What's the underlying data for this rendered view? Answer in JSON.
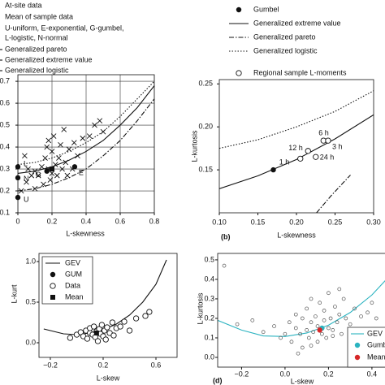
{
  "chart_data": [
    {
      "type": "scatter",
      "xlabel": "L-skewness",
      "grid": true,
      "xlim": [
        0,
        0.8
      ],
      "xticks": [
        0,
        0.2,
        0.4,
        0.6,
        0.8
      ],
      "ylim": [
        0.1,
        0.73
      ],
      "yticks": [
        0.1,
        0.2,
        0.3,
        0.4,
        0.5,
        0.6,
        0.7
      ],
      "series": [
        {
          "name": "At-site data",
          "marker": "x",
          "color": "#111",
          "x": [
            0.05,
            0.06,
            0.08,
            0.1,
            0.12,
            0.14,
            0.15,
            0.16,
            0.17,
            0.18,
            0.18,
            0.2,
            0.2,
            0.21,
            0.22,
            0.23,
            0.24,
            0.25,
            0.26,
            0.27,
            0.28,
            0.3,
            0.32,
            0.33,
            0.35,
            0.38,
            0.42,
            0.45,
            0.48,
            0.5,
            0.02,
            0.1,
            0.04,
            0.19,
            0.29
          ],
          "values": [
            0.24,
            0.3,
            0.27,
            0.29,
            0.27,
            0.31,
            0.23,
            0.35,
            0.4,
            0.3,
            0.43,
            0.28,
            0.38,
            0.45,
            0.32,
            0.27,
            0.35,
            0.41,
            0.3,
            0.48,
            0.33,
            0.39,
            0.3,
            0.42,
            0.36,
            0.44,
            0.45,
            0.5,
            0.52,
            0.47,
            0.2,
            0.21,
            0.36,
            0.25,
            0.27
          ]
        },
        {
          "name": "Mean of sample data",
          "marker": "square",
          "color": "#111",
          "x": [
            0.2
          ],
          "values": [
            0.3
          ]
        },
        {
          "name": [
            "U-uniform, E-exponential, G-gumbel,",
            "L-logistic, N-normal"
          ],
          "marker": "dot",
          "color": "#111",
          "x": [
            0,
            0,
            0,
            0.17,
            0.333
          ],
          "values": [
            0.17,
            0.26,
            0.31,
            0.29,
            0.31
          ],
          "point_labels": [
            "U",
            "N",
            "L",
            "G",
            "E"
          ]
        },
        {
          "name": "Generalized pareto",
          "line": "dashdot",
          "color": "#111",
          "x": [
            0,
            0.1,
            0.2,
            0.3,
            0.4,
            0.5,
            0.6,
            0.7,
            0.8
          ],
          "values": [
            0.2,
            0.21,
            0.23,
            0.26,
            0.3,
            0.36,
            0.43,
            0.52,
            0.62
          ]
        },
        {
          "name": "Generalized extreme value",
          "line": "solid",
          "color": "#111",
          "x": [
            0,
            0.1,
            0.2,
            0.3,
            0.4,
            0.5,
            0.6,
            0.7,
            0.8
          ],
          "values": [
            0.28,
            0.29,
            0.31,
            0.34,
            0.38,
            0.43,
            0.5,
            0.58,
            0.68
          ]
        },
        {
          "name": "Generalized logistic",
          "line": "dotted",
          "color": "#111",
          "x": [
            0,
            0.1,
            0.2,
            0.3,
            0.4,
            0.5,
            0.6,
            0.7,
            0.8
          ],
          "values": [
            0.32,
            0.33,
            0.35,
            0.38,
            0.42,
            0.47,
            0.54,
            0.62,
            0.7
          ]
        }
      ]
    },
    {
      "type": "scatter",
      "xlabel": "L-skewness",
      "ylabel": "L-kurtosis",
      "panel_label": "(b)",
      "grid": false,
      "xlim": [
        0.1,
        0.3
      ],
      "xticks": [
        {
          "value": 0.1,
          "label": "0.10"
        },
        0.15,
        {
          "value": 0.2,
          "label": "0.20"
        },
        0.25,
        {
          "value": 0.3,
          "label": "0.30"
        }
      ],
      "ylim": [
        0.1,
        0.255
      ],
      "yticks": [
        0.15,
        {
          "value": 0.2,
          "label": "0.20"
        },
        0.25
      ],
      "series": [
        {
          "name": "Gumbel",
          "marker": "dot",
          "color": "#111",
          "x": [
            0.17
          ],
          "values": [
            0.15
          ]
        },
        {
          "name": "Generalized extreme value",
          "line": "solid",
          "color": "#111",
          "x": [
            0.1,
            0.15,
            0.2,
            0.25,
            0.3
          ],
          "values": [
            0.128,
            0.143,
            0.162,
            0.186,
            0.214
          ]
        },
        {
          "name": "Generalized pareto",
          "line": "dashdot",
          "color": "#111",
          "x": [
            0.226,
            0.245,
            0.27
          ],
          "values": [
            0.1,
            0.12,
            0.144
          ]
        },
        {
          "name": "Generalized logistic",
          "line": "dotted",
          "color": "#111",
          "x": [
            0.1,
            0.15,
            0.2,
            0.25,
            0.3
          ],
          "values": [
            0.175,
            0.185,
            0.2,
            0.218,
            0.242
          ]
        },
        {
          "name": "Regional sample L-moments",
          "marker": "circle",
          "color": "#111",
          "x": [
            0.205,
            0.215,
            0.225,
            0.235,
            0.241
          ],
          "values": [
            0.163,
            0.172,
            0.165,
            0.184,
            0.184
          ],
          "point_labels": [
            "1 h",
            "12 h",
            "24 h",
            "6 h",
            "3 h"
          ]
        }
      ]
    },
    {
      "type": "scatter",
      "xlabel": "L-skew",
      "ylabel": "L-kurt",
      "grid": false,
      "xlim": [
        -0.286,
        0.76
      ],
      "xticks": [
        {
          "value": -0.2,
          "label": "−0.2"
        },
        0.2,
        0.6
      ],
      "ylim": [
        -0.18,
        1.1
      ],
      "yticks": [
        {
          "value": 0,
          "label": "0.0"
        },
        0.5,
        {
          "value": 1,
          "label": "1.0"
        }
      ],
      "series": [
        {
          "name": "GEV",
          "line": "solid",
          "color": "#111",
          "x": [
            -0.25,
            -0.1,
            0,
            0.1,
            0.2,
            0.3,
            0.4,
            0.5,
            0.6,
            0.68
          ],
          "values": [
            0.17,
            0.11,
            0.1,
            0.12,
            0.16,
            0.23,
            0.34,
            0.5,
            0.72,
            1.02
          ]
        },
        {
          "name": "GUM",
          "marker": "dot",
          "color": "#111",
          "x": [
            0.17
          ],
          "values": [
            0.15
          ]
        },
        {
          "name": "Data",
          "marker": "circle",
          "color": "#111",
          "x": [
            -0.05,
            0.0,
            0.03,
            0.05,
            0.07,
            0.08,
            0.1,
            0.1,
            0.12,
            0.13,
            0.14,
            0.15,
            0.16,
            0.17,
            0.18,
            0.19,
            0.2,
            0.21,
            0.22,
            0.23,
            0.25,
            0.27,
            0.28,
            0.3,
            0.33,
            0.36,
            0.4,
            0.45,
            0.52,
            0.55
          ],
          "values": [
            0.06,
            0.1,
            0.13,
            0.08,
            0.15,
            0.05,
            0.12,
            0.18,
            0.1,
            0.2,
            0.07,
            0.14,
            0.02,
            0.17,
            0.11,
            0.22,
            0.08,
            0.15,
            0.04,
            0.19,
            0.12,
            0.25,
            0.09,
            0.18,
            0.2,
            0.26,
            0.15,
            0.3,
            0.33,
            0.38
          ]
        },
        {
          "name": "Mean",
          "marker": "square",
          "color": "#111",
          "x": [
            0.15
          ],
          "values": [
            0.12
          ]
        }
      ]
    },
    {
      "type": "scatter",
      "xlabel": "L-skew",
      "ylabel": "L-kurtosis",
      "panel_label": "(d)",
      "grid": false,
      "xlim": [
        -0.31,
        0.52
      ],
      "xticks": [
        {
          "value": -0.2,
          "label": "−0.2"
        },
        {
          "value": 0,
          "label": "0.0"
        },
        0.2,
        0.4
      ],
      "ylim": [
        -0.05,
        0.533
      ],
      "yticks": [
        {
          "value": 0,
          "label": "0.0"
        },
        0.1,
        0.2,
        0.3,
        0.4,
        0.5
      ],
      "series": [
        {
          "marker": "small-circle",
          "color": "#555",
          "x": [
            -0.28,
            -0.22,
            -0.15,
            -0.1,
            -0.05,
            -0.02,
            0.0,
            0.02,
            0.03,
            0.05,
            0.05,
            0.07,
            0.08,
            0.08,
            0.1,
            0.1,
            0.11,
            0.12,
            0.12,
            0.13,
            0.14,
            0.15,
            0.15,
            0.16,
            0.17,
            0.18,
            0.18,
            0.19,
            0.2,
            0.2,
            0.21,
            0.22,
            0.23,
            0.24,
            0.25,
            0.26,
            0.27,
            0.28,
            0.3,
            0.32,
            0.33,
            0.35,
            0.38,
            0.4,
            0.42,
            0.12,
            0.06,
            0.25,
            0.3,
            0.22
          ],
          "values": [
            0.47,
            0.17,
            0.19,
            0.13,
            0.16,
            0.1,
            0.12,
            0.18,
            0.08,
            0.15,
            0.22,
            0.12,
            0.05,
            0.2,
            0.14,
            0.25,
            0.1,
            0.18,
            0.3,
            0.13,
            0.21,
            0.08,
            0.16,
            0.28,
            0.12,
            0.19,
            0.24,
            0.1,
            0.15,
            0.33,
            0.2,
            0.14,
            0.26,
            0.18,
            0.22,
            0.12,
            0.3,
            0.2,
            0.17,
            0.25,
            0.14,
            0.21,
            0.23,
            0.28,
            0.2,
            0.06,
            0.02,
            0.35,
            0.1,
            0.11
          ]
        },
        {
          "name": "GEV",
          "line": "solid",
          "color": "#2bb3c0",
          "x": [
            -0.31,
            -0.2,
            -0.1,
            0,
            0.1,
            0.2,
            0.3,
            0.4,
            0.5
          ],
          "values": [
            0.19,
            0.14,
            0.11,
            0.107,
            0.125,
            0.165,
            0.23,
            0.32,
            0.44
          ]
        },
        {
          "name": "Gumbel",
          "marker": "dot",
          "color": "#2bb3c0",
          "x": [
            0.17
          ],
          "values": [
            0.15
          ]
        },
        {
          "name": "Mean",
          "marker": "dot",
          "color": "#d62728",
          "x": [
            0.16
          ],
          "values": [
            0.14
          ]
        }
      ]
    }
  ]
}
